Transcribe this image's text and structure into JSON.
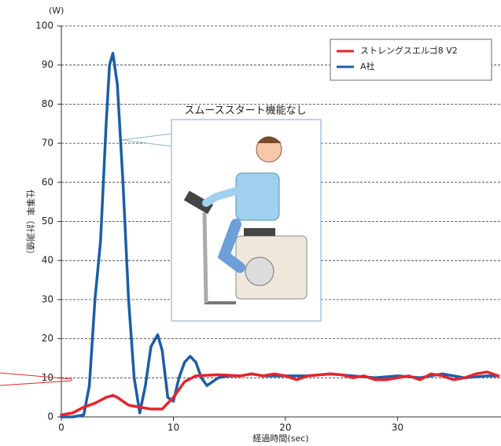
{
  "chart_data": {
    "type": "line",
    "y_unit": "(W)",
    "y_label": "仕事率（計測値）",
    "x_label": "経過時間(sec)",
    "annotation": "スムーススタート機能なし",
    "xlim": [
      0,
      39.1
    ],
    "xticks": [
      0,
      10,
      20,
      30
    ],
    "ylim": [
      0,
      100
    ],
    "yticks": [
      0,
      10,
      20,
      30,
      40,
      50,
      60,
      70,
      80,
      90,
      100
    ],
    "grid": true,
    "legend": "upper right",
    "series": [
      {
        "name": "ストレングスエルゴ8 V2",
        "color": "#e8242c",
        "x": [
          0,
          1,
          2,
          3,
          4,
          4.6,
          5,
          6,
          7,
          8,
          9,
          10,
          11,
          12,
          14,
          16,
          17,
          18,
          19,
          20,
          21,
          22,
          24,
          25,
          26,
          27,
          28,
          29,
          30,
          31,
          32,
          33,
          34,
          35,
          36,
          37,
          38,
          39
        ],
        "values": [
          0.5,
          1,
          2.5,
          3.5,
          5,
          5.5,
          5,
          3,
          2.5,
          2,
          2,
          5,
          9,
          10.5,
          10.8,
          10.5,
          11,
          10.5,
          11,
          10.5,
          9.5,
          10.5,
          11,
          10.8,
          10,
          10.5,
          9.5,
          9.5,
          10,
          10.5,
          9.5,
          11,
          10.5,
          9.5,
          10,
          11,
          11.5,
          10.5
        ]
      },
      {
        "name": "A社",
        "color": "#1a5ea8",
        "x": [
          0,
          1,
          2,
          2.5,
          3,
          3.5,
          4,
          4.3,
          4.6,
          5,
          5.5,
          6,
          6.5,
          7,
          7.5,
          8,
          8.6,
          9,
          9.5,
          10,
          10.5,
          11,
          11.5,
          12,
          12.5,
          13,
          14,
          15,
          16,
          17,
          18,
          20,
          22,
          24,
          26,
          28,
          30,
          32,
          34,
          36,
          38,
          39
        ],
        "values": [
          0,
          0,
          0.5,
          8,
          30,
          45,
          75,
          90,
          93,
          85,
          60,
          30,
          10,
          1,
          8,
          18,
          21,
          17,
          5,
          4,
          10,
          14,
          15.5,
          14,
          10,
          8,
          10,
          10.5,
          10.5,
          11,
          10.5,
          10.5,
          10.5,
          11,
          10.5,
          10,
          10.5,
          10,
          11,
          10,
          10.5,
          10.5
        ]
      }
    ]
  }
}
